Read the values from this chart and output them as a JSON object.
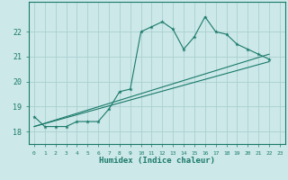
{
  "title": "",
  "xlabel": "Humidex (Indice chaleur)",
  "bg_color": "#cce8e8",
  "grid_color": "#aacfcf",
  "line_color": "#1a7a6a",
  "xlim": [
    -0.5,
    23.5
  ],
  "ylim": [
    17.5,
    23.2
  ],
  "yticks": [
    18,
    19,
    20,
    21,
    22
  ],
  "xticks": [
    0,
    1,
    2,
    3,
    4,
    5,
    6,
    7,
    8,
    9,
    10,
    11,
    12,
    13,
    14,
    15,
    16,
    17,
    18,
    19,
    20,
    21,
    22,
    23
  ],
  "line1_x": [
    0,
    1,
    2,
    3,
    4,
    5,
    6,
    7,
    8,
    9,
    10,
    11,
    12,
    13,
    14,
    15,
    16,
    17,
    18,
    19,
    20,
    21,
    22
  ],
  "line1_y": [
    18.6,
    18.2,
    18.2,
    18.2,
    18.4,
    18.4,
    18.4,
    18.9,
    19.6,
    19.7,
    22.0,
    22.2,
    22.4,
    22.1,
    21.3,
    21.8,
    22.6,
    22.0,
    21.9,
    21.5,
    21.3,
    21.1,
    20.9
  ],
  "line2_x": [
    0,
    22
  ],
  "line2_y": [
    18.2,
    20.8
  ],
  "line3_x": [
    0,
    22
  ],
  "line3_y": [
    18.2,
    21.1
  ]
}
